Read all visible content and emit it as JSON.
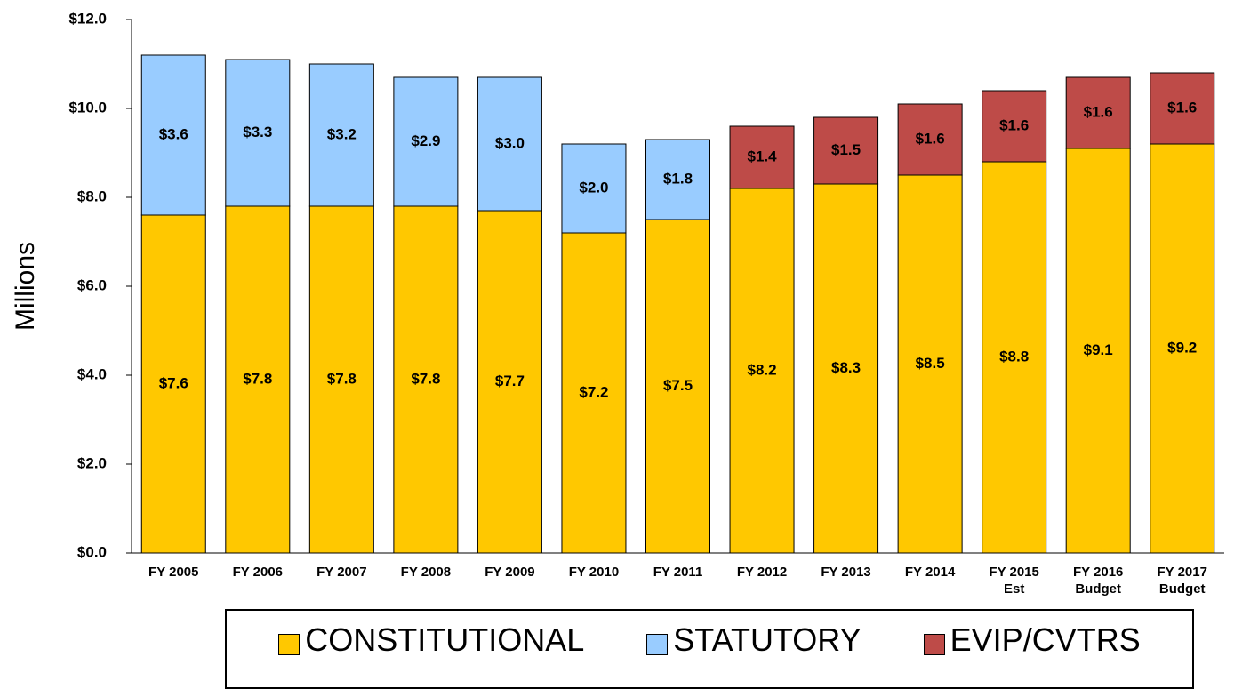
{
  "chart_data": {
    "type": "stacked_bar",
    "y_label": "Millions",
    "categories": [
      "FY 2005",
      "FY 2006",
      "FY 2007",
      "FY 2008",
      "FY 2009",
      "FY 2010",
      "FY 2011",
      "FY 2012",
      "FY 2013",
      "FY 2014",
      "FY 2015\nEst",
      "FY 2016\nBudget",
      "FY 2017\nBudget"
    ],
    "series": [
      {
        "name": "CONSTITUTIONAL",
        "color": "#ffc800",
        "values": [
          7.6,
          7.8,
          7.8,
          7.8,
          7.7,
          7.2,
          7.5,
          8.2,
          8.3,
          8.5,
          8.8,
          9.1,
          9.2
        ],
        "value_labels": [
          "$7.6",
          "$7.8",
          "$7.8",
          "$7.8",
          "$7.7",
          "$7.2",
          "$7.5",
          "$8.2",
          "$8.3",
          "$8.5",
          "$8.8",
          "$9.1",
          "$9.2"
        ]
      },
      {
        "name": "STATUTORY",
        "color": "#99ccff",
        "values": [
          3.6,
          3.3,
          3.2,
          2.9,
          3.0,
          2.0,
          1.8,
          null,
          null,
          null,
          null,
          null,
          null
        ],
        "value_labels": [
          "$3.6",
          "$3.3",
          "$3.2",
          "$2.9",
          "$3.0",
          "$2.0",
          "$1.8",
          null,
          null,
          null,
          null,
          null,
          null
        ]
      },
      {
        "name": "EVIP/CVTRS",
        "color": "#be4b48",
        "values": [
          null,
          null,
          null,
          null,
          null,
          null,
          null,
          1.4,
          1.5,
          1.6,
          1.6,
          1.6,
          1.6
        ],
        "value_labels": [
          null,
          null,
          null,
          null,
          null,
          null,
          null,
          "$1.4",
          "$1.5",
          "$1.6",
          "$1.6",
          "$1.6",
          "$1.6"
        ]
      }
    ],
    "ylim": [
      0,
      12
    ],
    "yticks": [
      {
        "value": 0,
        "label": "$0.0"
      },
      {
        "value": 2,
        "label": "$2.0"
      },
      {
        "value": 4,
        "label": "$4.0"
      },
      {
        "value": 6,
        "label": "$6.0"
      },
      {
        "value": 8,
        "label": "$8.0"
      },
      {
        "value": 10,
        "label": "$10.0"
      },
      {
        "value": 12,
        "label": "$12.0"
      }
    ],
    "legend": "bottom"
  }
}
